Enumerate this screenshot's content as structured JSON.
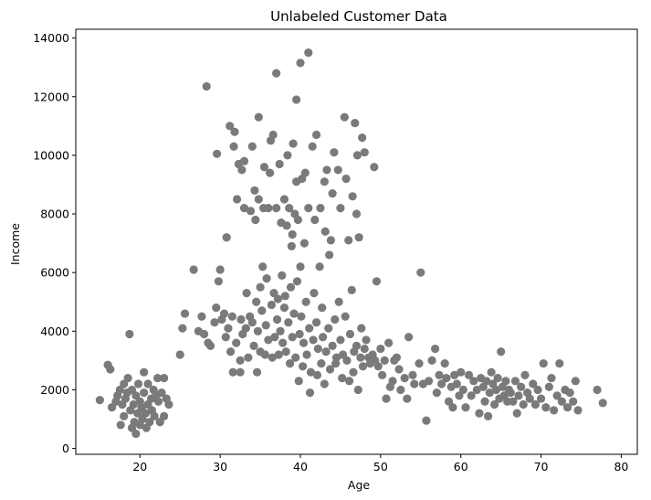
{
  "chart_data": {
    "type": "scatter",
    "title": "Unlabeled Customer Data",
    "xlabel": "Age",
    "ylabel": "Income",
    "xlim": [
      12,
      82
    ],
    "ylim": [
      -200,
      14300
    ],
    "xticks": [
      20,
      30,
      40,
      50,
      60,
      70,
      80
    ],
    "yticks": [
      0,
      2000,
      4000,
      6000,
      8000,
      10000,
      12000,
      14000
    ],
    "grid": false,
    "legend": "none",
    "marker_color": "#7a7a7a",
    "series": [
      {
        "points": [
          [
            15,
            1650
          ],
          [
            16,
            2850
          ],
          [
            16.3,
            2700
          ],
          [
            16.5,
            1400
          ],
          [
            17,
            1600
          ],
          [
            17.2,
            1800
          ],
          [
            17.5,
            2000
          ],
          [
            17.6,
            800
          ],
          [
            17.8,
            1500
          ],
          [
            18,
            2200
          ],
          [
            18,
            1100
          ],
          [
            18.2,
            1700
          ],
          [
            18.4,
            1900
          ],
          [
            18.5,
            2400
          ],
          [
            18.7,
            3900
          ],
          [
            18.8,
            1300
          ],
          [
            19,
            2000
          ],
          [
            19,
            700
          ],
          [
            19.2,
            1500
          ],
          [
            19.3,
            900
          ],
          [
            19.5,
            1800
          ],
          [
            19.5,
            500
          ],
          [
            19.7,
            1200
          ],
          [
            19.8,
            2200
          ],
          [
            20,
            1600
          ],
          [
            20,
            800
          ],
          [
            20.2,
            1400
          ],
          [
            20.3,
            1000
          ],
          [
            20.5,
            2600
          ],
          [
            20.5,
            1900
          ],
          [
            20.7,
            1200
          ],
          [
            20.8,
            700
          ],
          [
            21,
            1500
          ],
          [
            21,
            2200
          ],
          [
            21.2,
            900
          ],
          [
            21.4,
            1700
          ],
          [
            21.5,
            1300
          ],
          [
            21.7,
            2000
          ],
          [
            21.8,
            1100
          ],
          [
            22,
            1800
          ],
          [
            22.2,
            2400
          ],
          [
            22.3,
            1600
          ],
          [
            22.5,
            900
          ],
          [
            22.7,
            1900
          ],
          [
            23,
            1100
          ],
          [
            23,
            2400
          ],
          [
            23.3,
            1700
          ],
          [
            23.6,
            1500
          ],
          [
            25,
            3200
          ],
          [
            25.3,
            4100
          ],
          [
            25.6,
            4600
          ],
          [
            26.7,
            6100
          ],
          [
            27.3,
            4000
          ],
          [
            27.7,
            4500
          ],
          [
            28,
            3900
          ],
          [
            28.3,
            12350
          ],
          [
            28.5,
            3600
          ],
          [
            28.8,
            3500
          ],
          [
            29.3,
            4300
          ],
          [
            29.5,
            4800
          ],
          [
            29.6,
            10050
          ],
          [
            29.8,
            5700
          ],
          [
            30,
            6100
          ],
          [
            30.2,
            4400
          ],
          [
            30.5,
            4600
          ],
          [
            30.7,
            3800
          ],
          [
            30.8,
            7200
          ],
          [
            31,
            4100
          ],
          [
            31.2,
            11000
          ],
          [
            31.3,
            3300
          ],
          [
            31.5,
            4500
          ],
          [
            31.6,
            2600
          ],
          [
            31.7,
            10300
          ],
          [
            31.8,
            10800
          ],
          [
            32,
            3600
          ],
          [
            32.1,
            8500
          ],
          [
            32.3,
            9700
          ],
          [
            32.5,
            3000
          ],
          [
            32.5,
            2600
          ],
          [
            32.6,
            4400
          ],
          [
            32.7,
            9500
          ],
          [
            32.8,
            3900
          ],
          [
            33,
            8200
          ],
          [
            33,
            9800
          ],
          [
            33.2,
            4100
          ],
          [
            33.3,
            5300
          ],
          [
            33.5,
            3100
          ],
          [
            33.7,
            4500
          ],
          [
            33.8,
            8100
          ],
          [
            34,
            10300
          ],
          [
            34,
            4300
          ],
          [
            34.2,
            3500
          ],
          [
            34.3,
            8800
          ],
          [
            34.4,
            7800
          ],
          [
            34.5,
            5000
          ],
          [
            34.6,
            2600
          ],
          [
            34.7,
            4000
          ],
          [
            34.8,
            11300
          ],
          [
            34.8,
            8500
          ],
          [
            35,
            5500
          ],
          [
            35,
            3300
          ],
          [
            35.2,
            4700
          ],
          [
            35.3,
            6200
          ],
          [
            35.4,
            8200
          ],
          [
            35.5,
            9600
          ],
          [
            35.6,
            3200
          ],
          [
            35.7,
            4200
          ],
          [
            35.8,
            5800
          ],
          [
            36,
            8200
          ],
          [
            36,
            3700
          ],
          [
            36.2,
            9400
          ],
          [
            36.3,
            10500
          ],
          [
            36.4,
            4900
          ],
          [
            36.5,
            3100
          ],
          [
            36.6,
            10700
          ],
          [
            36.7,
            5300
          ],
          [
            36.8,
            3800
          ],
          [
            37,
            12800
          ],
          [
            37,
            8200
          ],
          [
            37.1,
            4400
          ],
          [
            37.2,
            5100
          ],
          [
            37.3,
            3200
          ],
          [
            37.4,
            9700
          ],
          [
            37.5,
            4000
          ],
          [
            37.6,
            7700
          ],
          [
            37.7,
            5900
          ],
          [
            37.8,
            3600
          ],
          [
            38,
            8500
          ],
          [
            38,
            4800
          ],
          [
            38.1,
            5200
          ],
          [
            38.2,
            3300
          ],
          [
            38.3,
            7600
          ],
          [
            38.4,
            10000
          ],
          [
            38.5,
            4300
          ],
          [
            38.6,
            8200
          ],
          [
            38.7,
            2900
          ],
          [
            38.8,
            5500
          ],
          [
            38.9,
            6900
          ],
          [
            39,
            7300
          ],
          [
            39,
            3800
          ],
          [
            39.1,
            10400
          ],
          [
            39.2,
            4600
          ],
          [
            39.3,
            8000
          ],
          [
            39.4,
            3100
          ],
          [
            39.5,
            11900
          ],
          [
            39.5,
            9100
          ],
          [
            39.6,
            5700
          ],
          [
            39.7,
            7800
          ],
          [
            39.8,
            2300
          ],
          [
            39.9,
            3900
          ],
          [
            40,
            13150
          ],
          [
            40,
            6200
          ],
          [
            40.1,
            4500
          ],
          [
            40.2,
            9200
          ],
          [
            40.3,
            2800
          ],
          [
            40.4,
            3600
          ],
          [
            40.5,
            7000
          ],
          [
            40.6,
            9400
          ],
          [
            40.7,
            5000
          ],
          [
            40.8,
            3200
          ],
          [
            41,
            13500
          ],
          [
            41,
            8200
          ],
          [
            41.1,
            4100
          ],
          [
            41.2,
            1900
          ],
          [
            41.3,
            2600
          ],
          [
            41.5,
            10300
          ],
          [
            41.6,
            3700
          ],
          [
            41.7,
            5300
          ],
          [
            41.8,
            7800
          ],
          [
            42,
            10700
          ],
          [
            42,
            4300
          ],
          [
            42.1,
            2500
          ],
          [
            42.2,
            3400
          ],
          [
            42.4,
            6200
          ],
          [
            42.5,
            8200
          ],
          [
            42.6,
            2900
          ],
          [
            42.7,
            4800
          ],
          [
            42.8,
            3800
          ],
          [
            43,
            9100
          ],
          [
            43,
            2200
          ],
          [
            43.1,
            7400
          ],
          [
            43.2,
            3300
          ],
          [
            43.3,
            9500
          ],
          [
            43.5,
            4100
          ],
          [
            43.6,
            6600
          ],
          [
            43.7,
            2700
          ],
          [
            43.8,
            7100
          ],
          [
            44,
            3500
          ],
          [
            44,
            8700
          ],
          [
            44.2,
            10100
          ],
          [
            44.3,
            4400
          ],
          [
            44.4,
            2900
          ],
          [
            44.5,
            3100
          ],
          [
            44.7,
            9500
          ],
          [
            44.8,
            5000
          ],
          [
            45,
            3700
          ],
          [
            45,
            8200
          ],
          [
            45.2,
            2400
          ],
          [
            45.3,
            3200
          ],
          [
            45.5,
            11300
          ],
          [
            45.6,
            4500
          ],
          [
            45.7,
            9200
          ],
          [
            45.8,
            3000
          ],
          [
            46,
            7100
          ],
          [
            46.1,
            2300
          ],
          [
            46.2,
            3900
          ],
          [
            46.4,
            5400
          ],
          [
            46.5,
            8600
          ],
          [
            46.6,
            2600
          ],
          [
            46.7,
            3300
          ],
          [
            46.8,
            11100
          ],
          [
            47,
            8000
          ],
          [
            47,
            3500
          ],
          [
            47.1,
            10000
          ],
          [
            47.2,
            2000
          ],
          [
            47.3,
            7200
          ],
          [
            47.5,
            3100
          ],
          [
            47.6,
            4100
          ],
          [
            47.7,
            10600
          ],
          [
            47.8,
            2800
          ],
          [
            48,
            10100
          ],
          [
            48,
            3400
          ],
          [
            48.2,
            3700
          ],
          [
            48.5,
            3100
          ],
          [
            48.7,
            2900
          ],
          [
            49,
            3200
          ],
          [
            49.2,
            9600
          ],
          [
            49.3,
            3000
          ],
          [
            49.5,
            5700
          ],
          [
            49.7,
            2800
          ],
          [
            50,
            3400
          ],
          [
            50.2,
            2500
          ],
          [
            50.5,
            3000
          ],
          [
            50.7,
            1700
          ],
          [
            51,
            3600
          ],
          [
            51.2,
            2100
          ],
          [
            51.5,
            2300
          ],
          [
            51.7,
            3000
          ],
          [
            52,
            3100
          ],
          [
            52.3,
            2700
          ],
          [
            52.5,
            2000
          ],
          [
            53,
            2400
          ],
          [
            53.3,
            1700
          ],
          [
            53.5,
            3800
          ],
          [
            54,
            2500
          ],
          [
            54.2,
            2200
          ],
          [
            54.8,
            2900
          ],
          [
            55,
            6000
          ],
          [
            55.3,
            2200
          ],
          [
            55.7,
            950
          ],
          [
            56,
            2300
          ],
          [
            56.4,
            3000
          ],
          [
            56.8,
            3400
          ],
          [
            57,
            1900
          ],
          [
            57.3,
            2500
          ],
          [
            57.6,
            2200
          ],
          [
            58,
            2900
          ],
          [
            58.2,
            2400
          ],
          [
            58.5,
            1600
          ],
          [
            58.8,
            2100
          ],
          [
            59,
            1400
          ],
          [
            59.2,
            2500
          ],
          [
            59.5,
            2200
          ],
          [
            59.8,
            1800
          ],
          [
            60,
            2600
          ],
          [
            60.3,
            2000
          ],
          [
            60.6,
            1400
          ],
          [
            61,
            2500
          ],
          [
            61.3,
            1800
          ],
          [
            61.6,
            2300
          ],
          [
            62,
            2000
          ],
          [
            62.3,
            1200
          ],
          [
            62.5,
            2400
          ],
          [
            62.8,
            2100
          ],
          [
            63,
            1600
          ],
          [
            63.2,
            2300
          ],
          [
            63.4,
            1100
          ],
          [
            63.6,
            1900
          ],
          [
            63.8,
            2600
          ],
          [
            64,
            2200
          ],
          [
            64.2,
            1500
          ],
          [
            64.4,
            2000
          ],
          [
            64.6,
            2400
          ],
          [
            64.8,
            1700
          ],
          [
            65,
            3300
          ],
          [
            65.2,
            2100
          ],
          [
            65.4,
            1800
          ],
          [
            65.6,
            2300
          ],
          [
            65.8,
            1600
          ],
          [
            66,
            2000
          ],
          [
            66.2,
            1900
          ],
          [
            66.5,
            1600
          ],
          [
            66.8,
            2300
          ],
          [
            67,
            1200
          ],
          [
            67.2,
            1800
          ],
          [
            67.5,
            2100
          ],
          [
            67.8,
            1500
          ],
          [
            68,
            2500
          ],
          [
            68.3,
            1900
          ],
          [
            68.6,
            1700
          ],
          [
            69,
            2200
          ],
          [
            69.3,
            1500
          ],
          [
            69.6,
            2000
          ],
          [
            70,
            1700
          ],
          [
            70.3,
            2900
          ],
          [
            70.6,
            1400
          ],
          [
            71,
            2100
          ],
          [
            71.3,
            2400
          ],
          [
            71.6,
            1300
          ],
          [
            72,
            1800
          ],
          [
            72.3,
            2900
          ],
          [
            72.6,
            1600
          ],
          [
            73,
            2000
          ],
          [
            73.3,
            1400
          ],
          [
            73.6,
            1900
          ],
          [
            74,
            1600
          ],
          [
            74.3,
            2300
          ],
          [
            74.6,
            1300
          ],
          [
            77,
            2000
          ],
          [
            77.7,
            1550
          ]
        ]
      }
    ]
  }
}
